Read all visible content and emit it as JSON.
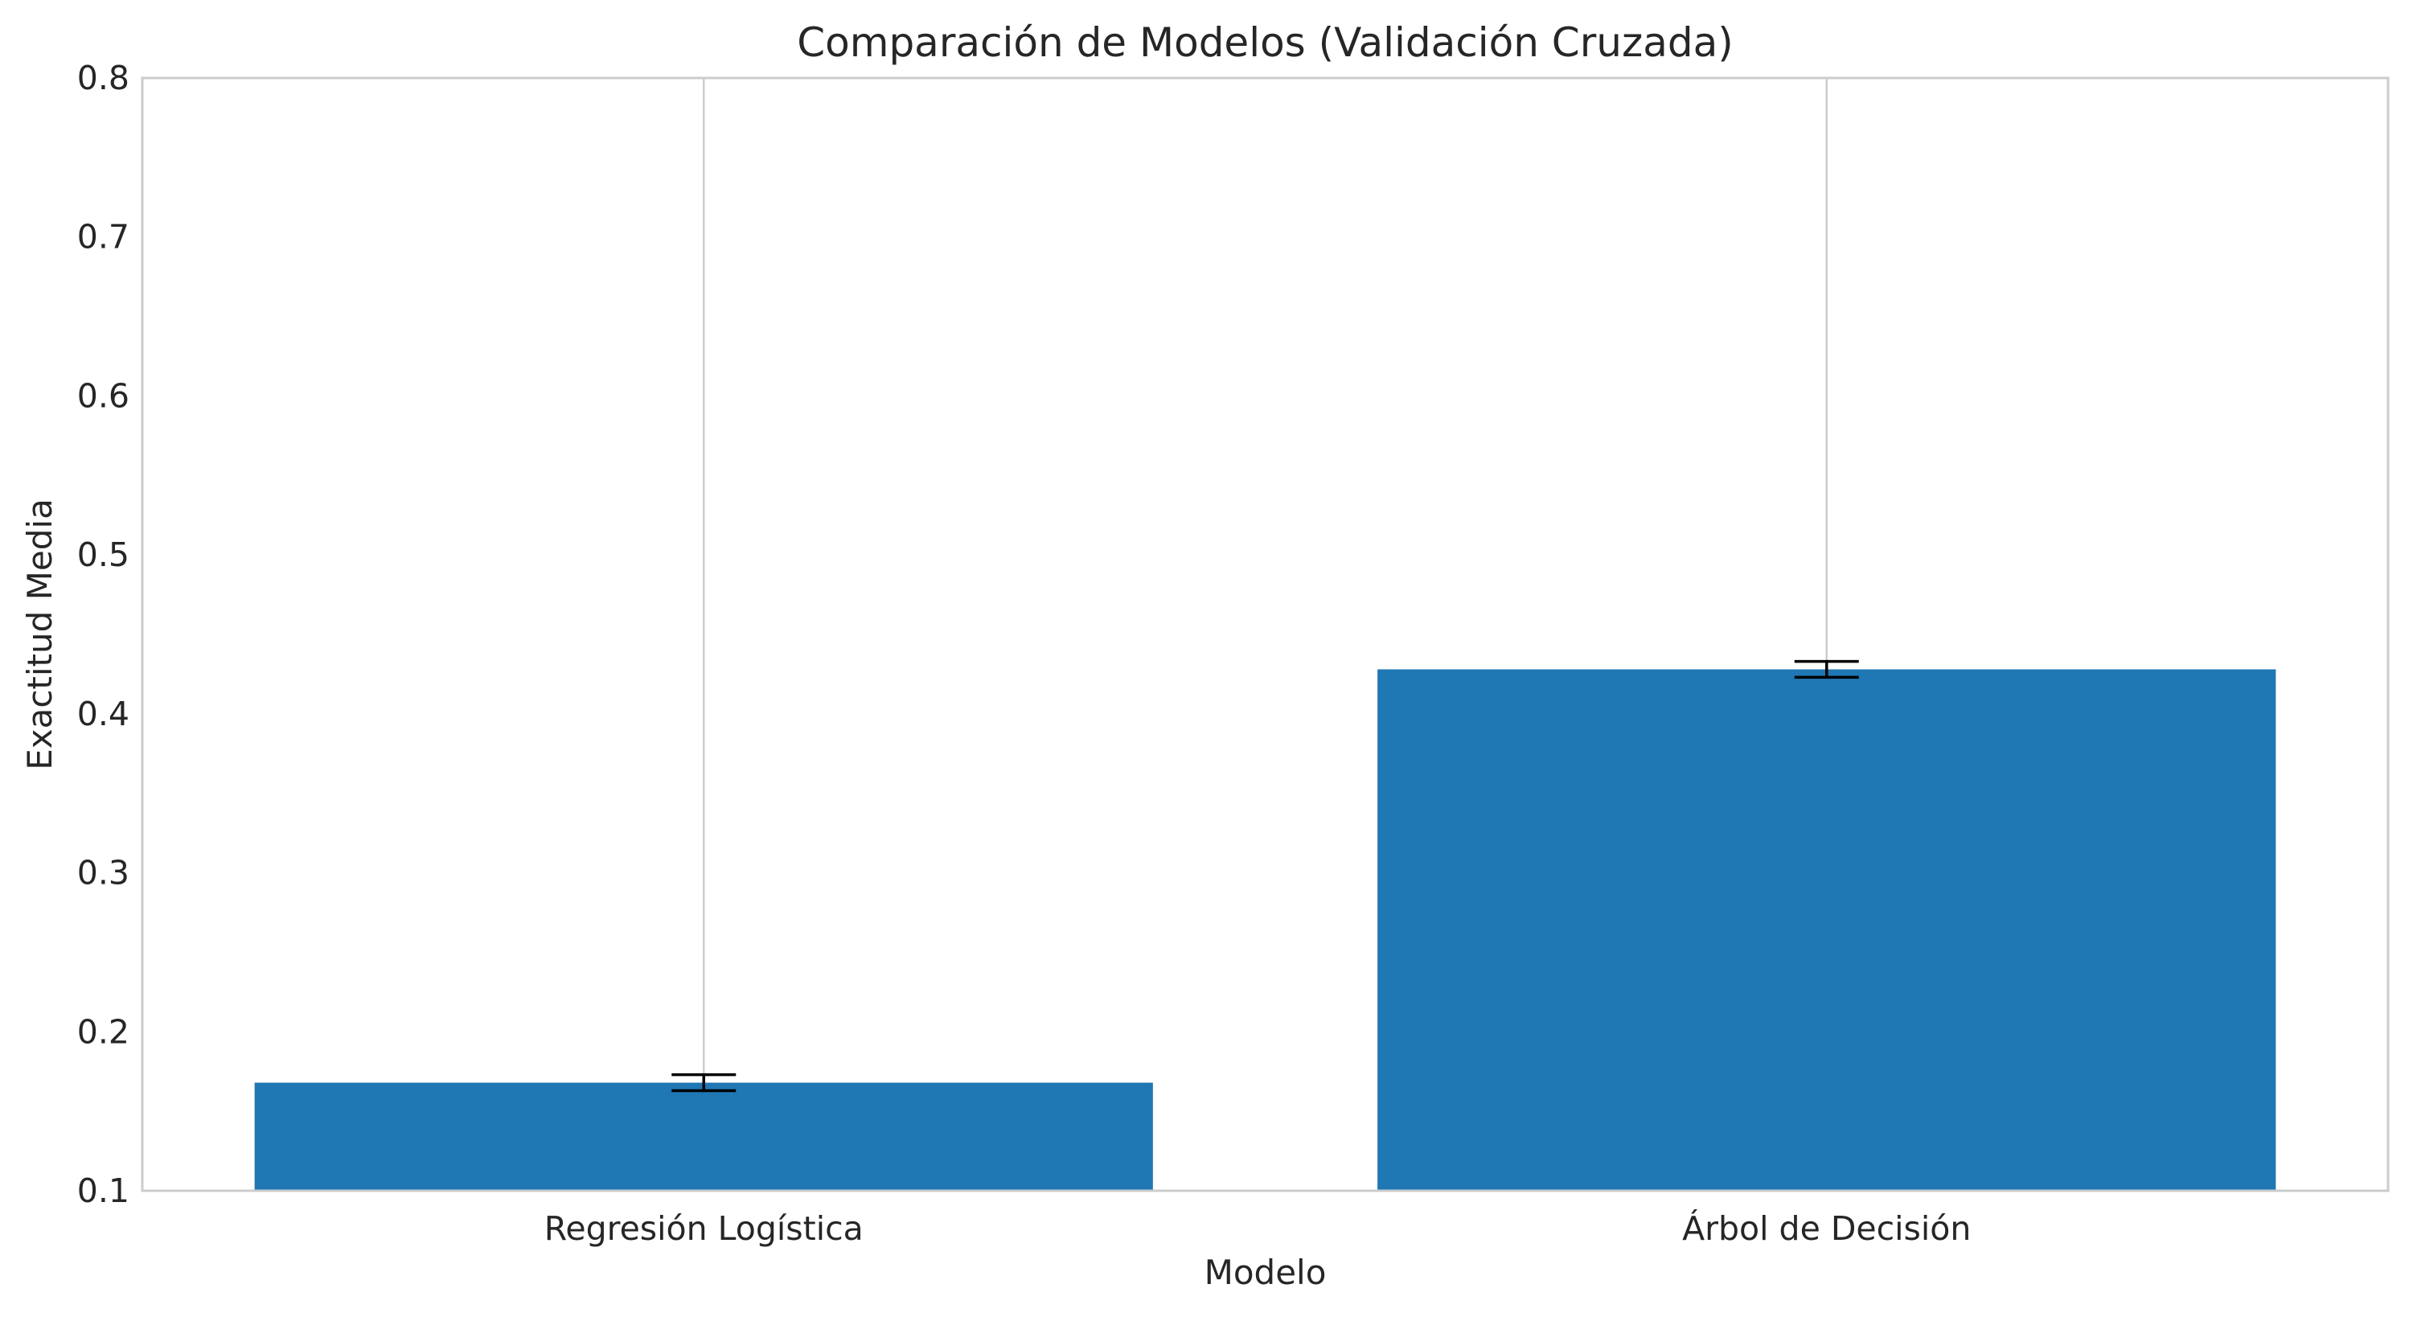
{
  "chart_data": {
    "type": "bar",
    "title": "Comparación de Modelos (Validación Cruzada)",
    "xlabel": "Modelo",
    "ylabel": "Exactitud Media",
    "categories": [
      "Regresión Logística",
      "Árbol de Decisión"
    ],
    "values": [
      0.168,
      0.428
    ],
    "errors": [
      0.005,
      0.005
    ],
    "ylim": [
      0.1,
      0.8
    ],
    "yticks": [
      0.1,
      0.2,
      0.3,
      0.4,
      0.5,
      0.6,
      0.7,
      0.8
    ],
    "ytick_labels": [
      "0.1",
      "0.2",
      "0.3",
      "0.4",
      "0.5",
      "0.6",
      "0.7",
      "0.8"
    ],
    "grid": "x",
    "bar_color": "#1f77b4",
    "error_color": "#000000",
    "grid_color": "#cccccc",
    "spine_color": "#cccccc"
  }
}
